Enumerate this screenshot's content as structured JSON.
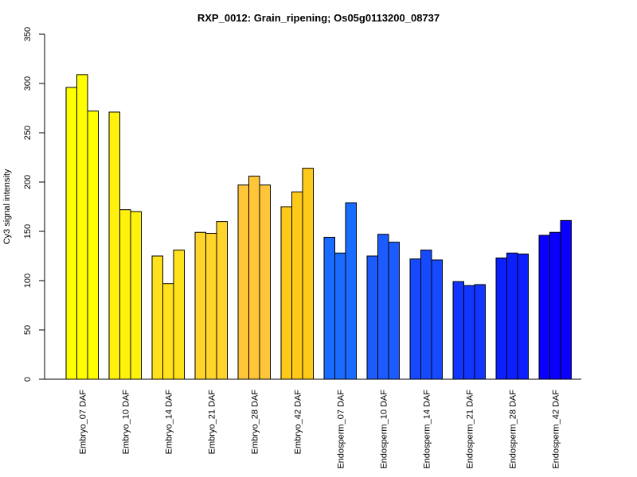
{
  "chart_data": {
    "type": "bar",
    "title": "RXP_0012: Grain_ripening; Os05g0113200_08737",
    "xlabel": "",
    "ylabel": "Cy3 signal intensity",
    "ylim": [
      0,
      350
    ],
    "yticks": [
      0,
      50,
      100,
      150,
      200,
      250,
      300,
      350
    ],
    "grid": false,
    "legend": "none",
    "categories": [
      "Embryo_07 DAF",
      "Embryo_10 DAF",
      "Embryo_14 DAF",
      "Embryo_21 DAF",
      "Embryo_28 DAF",
      "Embryo_42 DAF",
      "Endosperm_07 DAF",
      "Endosperm_10 DAF",
      "Endosperm_14 DAF",
      "Endosperm_21 DAF",
      "Endosperm_28 DAF",
      "Endosperm_42 DAF"
    ],
    "group_colors": [
      "#ffff00",
      "#fff10e",
      "#ffe21c",
      "#ffd42b",
      "#ffc63a",
      "#ffc919",
      "#1a6bff",
      "#1c5cff",
      "#164aff",
      "#1236ff",
      "#0c20ff",
      "#0a00ff"
    ],
    "values": [
      [
        296,
        309,
        272
      ],
      [
        271,
        172,
        170
      ],
      [
        125,
        97,
        131
      ],
      [
        149,
        148,
        160
      ],
      [
        197,
        206,
        197
      ],
      [
        175,
        190,
        214
      ],
      [
        144,
        128,
        179
      ],
      [
        125,
        147,
        139
      ],
      [
        122,
        131,
        121
      ],
      [
        99,
        95,
        96
      ],
      [
        123,
        128,
        127
      ],
      [
        146,
        149,
        161
      ]
    ]
  }
}
